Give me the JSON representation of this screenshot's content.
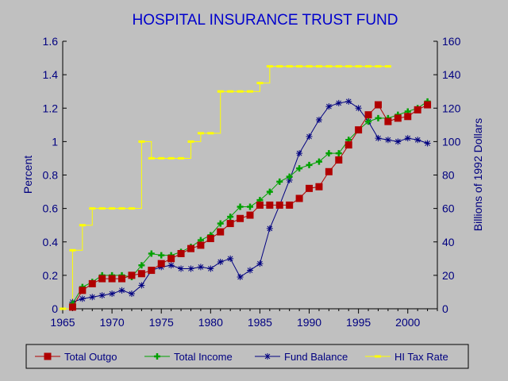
{
  "colors": {
    "background": "#c0c0c0",
    "title": "#0000cc",
    "axis_text": "#000080",
    "outgo": "#b00000",
    "income": "#00a000",
    "balance": "#000080",
    "tax_rate": "#ffff00"
  },
  "chart_data": {
    "type": "line",
    "title": "HOSPITAL INSURANCE TRUST FUND",
    "ylabel": "Percent",
    "y2label": "Billions of 1992 Dollars",
    "xlim": [
      1965,
      2003
    ],
    "ylim": [
      0,
      1.6
    ],
    "y2lim": [
      0,
      160
    ],
    "x_ticks": [
      1965,
      1970,
      1975,
      1980,
      1985,
      1990,
      1995,
      2000
    ],
    "x_tick_labels": [
      "1965",
      "1970",
      "1975",
      "1980",
      "1985",
      "1990",
      "1995",
      "2000"
    ],
    "y_ticks": [
      0,
      0.2,
      0.4,
      0.6,
      0.8,
      1,
      1.2,
      1.4,
      1.6
    ],
    "y_tick_labels": [
      "0",
      "0.2",
      "0.4",
      "0.6",
      "0.8",
      "1",
      "1.2",
      "1.4",
      "1.6"
    ],
    "y2_ticks": [
      0,
      20,
      40,
      60,
      80,
      100,
      120,
      140,
      160
    ],
    "y2_tick_labels": [
      "0",
      "20",
      "40",
      "60",
      "80",
      "100",
      "120",
      "140",
      "160"
    ],
    "grid": false,
    "legend_position": "bottom",
    "series": [
      {
        "name": "Total Outgo",
        "axis": "left",
        "marker": "square",
        "color": "#b00000",
        "x": [
          1966,
          1967,
          1968,
          1969,
          1970,
          1971,
          1972,
          1973,
          1974,
          1975,
          1976,
          1977,
          1978,
          1979,
          1980,
          1981,
          1982,
          1983,
          1984,
          1985,
          1986,
          1987,
          1988,
          1989,
          1990,
          1991,
          1992,
          1993,
          1994,
          1995,
          1996,
          1997,
          1998,
          1999,
          2000,
          2001,
          2002
        ],
        "values": [
          0.01,
          0.11,
          0.15,
          0.18,
          0.18,
          0.18,
          0.2,
          0.21,
          0.23,
          0.27,
          0.3,
          0.33,
          0.36,
          0.38,
          0.42,
          0.46,
          0.51,
          0.54,
          0.56,
          0.62,
          0.62,
          0.62,
          0.62,
          0.66,
          0.72,
          0.73,
          0.82,
          0.89,
          0.98,
          1.07,
          1.16,
          1.22,
          1.12,
          1.14,
          1.15,
          1.19,
          1.22
        ]
      },
      {
        "name": "Total Income",
        "axis": "left",
        "marker": "plus",
        "color": "#00a000",
        "x": [
          1966,
          1967,
          1968,
          1969,
          1970,
          1971,
          1972,
          1973,
          1974,
          1975,
          1976,
          1977,
          1978,
          1979,
          1980,
          1981,
          1982,
          1983,
          1984,
          1985,
          1986,
          1987,
          1988,
          1989,
          1990,
          1991,
          1992,
          1993,
          1994,
          1995,
          1996,
          1997,
          1998,
          1999,
          2000,
          2001,
          2002
        ],
        "values": [
          0.03,
          0.13,
          0.16,
          0.2,
          0.2,
          0.2,
          0.19,
          0.26,
          0.33,
          0.32,
          0.32,
          0.34,
          0.37,
          0.41,
          0.44,
          0.51,
          0.55,
          0.61,
          0.61,
          0.65,
          0.7,
          0.76,
          0.79,
          0.84,
          0.86,
          0.88,
          0.93,
          0.93,
          1.01,
          1.07,
          1.12,
          1.14,
          1.14,
          1.16,
          1.18,
          1.2,
          1.24
        ]
      },
      {
        "name": "Fund Balance",
        "axis": "right",
        "marker": "star",
        "color": "#000080",
        "x": [
          1966,
          1967,
          1968,
          1969,
          1970,
          1971,
          1972,
          1973,
          1974,
          1975,
          1976,
          1977,
          1978,
          1979,
          1980,
          1981,
          1982,
          1983,
          1984,
          1985,
          1986,
          1987,
          1988,
          1989,
          1990,
          1991,
          1992,
          1993,
          1994,
          1995,
          1996,
          1997,
          1998,
          1999,
          2000,
          2001,
          2002
        ],
        "values": [
          4,
          6,
          7,
          8,
          9,
          11,
          9,
          14,
          23,
          25,
          26,
          24,
          24,
          25,
          24,
          28,
          30,
          19,
          23,
          27,
          48,
          62,
          77,
          93,
          103,
          113,
          121,
          123,
          124,
          120,
          112,
          102,
          101,
          100,
          102,
          101,
          99
        ]
      },
      {
        "name": "HI Tax Rate",
        "axis": "left",
        "marker": "dash",
        "color": "#ffff00",
        "x": [
          1965,
          1966,
          1967,
          1968,
          1969,
          1970,
          1971,
          1972,
          1973,
          1974,
          1975,
          1976,
          1977,
          1978,
          1979,
          1980,
          1981,
          1982,
          1983,
          1984,
          1985,
          1986,
          1987,
          1988,
          1989,
          1990,
          1991,
          1992,
          1993,
          1994,
          1995,
          1996,
          1997,
          1998
        ],
        "values": [
          0,
          0.35,
          0.5,
          0.6,
          0.6,
          0.6,
          0.6,
          0.6,
          1.0,
          0.9,
          0.9,
          0.9,
          0.9,
          1.0,
          1.05,
          1.05,
          1.3,
          1.3,
          1.3,
          1.3,
          1.35,
          1.45,
          1.45,
          1.45,
          1.45,
          1.45,
          1.45,
          1.45,
          1.45,
          1.45,
          1.45,
          1.45,
          1.45,
          1.45
        ]
      }
    ]
  }
}
